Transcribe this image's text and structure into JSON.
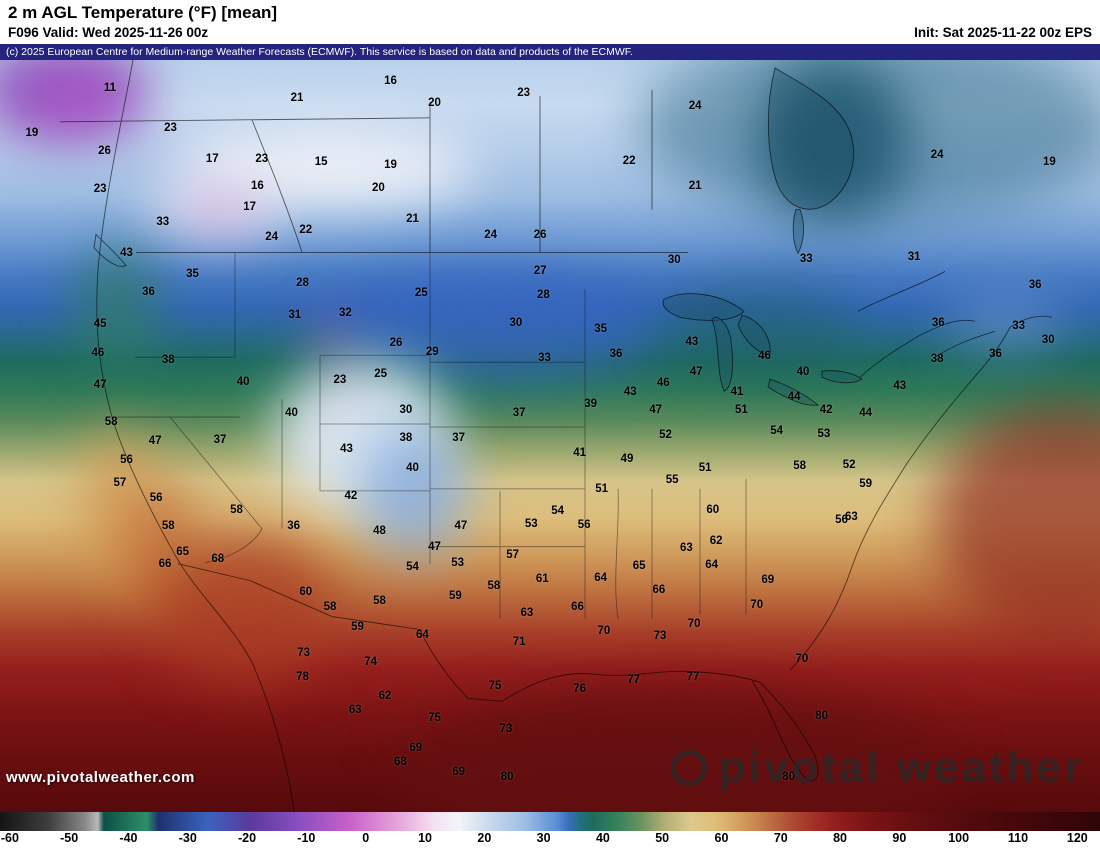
{
  "header": {
    "title": "2 m AGL Temperature (°F) [mean]",
    "valid": "F096 Valid: Wed 2025-11-26 00z",
    "init": "Init: Sat 2025-11-22 00z EPS"
  },
  "copyright": "(c) 2025 European Centre for Medium-range Weather Forecasts (ECMWF). This service is based on data and products of the ECMWF.",
  "watermark": {
    "site": "www.pivotalweather.com",
    "brand": "pivotal weather"
  },
  "colorbar": {
    "min": -60,
    "max": 120,
    "ticks": [
      -60,
      -50,
      -40,
      -30,
      -20,
      -10,
      0,
      10,
      20,
      30,
      40,
      50,
      60,
      70,
      80,
      90,
      100,
      110,
      120
    ],
    "stops": [
      {
        "v": -60,
        "c": "#141414"
      },
      {
        "v": -52,
        "c": "#3e3e3e"
      },
      {
        "v": -46,
        "c": "#8a8a8a"
      },
      {
        "v": -44,
        "c": "#b8b8b8"
      },
      {
        "v": -43,
        "c": "#0e4f46"
      },
      {
        "v": -36,
        "c": "#2c8f68"
      },
      {
        "v": -34,
        "c": "#20306f"
      },
      {
        "v": -26,
        "c": "#3a63c0"
      },
      {
        "v": -19,
        "c": "#5b3a9e"
      },
      {
        "v": -11,
        "c": "#8a4fc0"
      },
      {
        "v": -3,
        "c": "#c75fc9"
      },
      {
        "v": 4,
        "c": "#e39ad8"
      },
      {
        "v": 11,
        "c": "#f4e0f0"
      },
      {
        "v": 15,
        "c": "#f3f5f8"
      },
      {
        "v": 20,
        "c": "#cadaee"
      },
      {
        "v": 26,
        "c": "#9dbde4"
      },
      {
        "v": 31,
        "c": "#5b8fd4"
      },
      {
        "v": 33,
        "c": "#3b6fbf"
      },
      {
        "v": 35,
        "c": "#20707f"
      },
      {
        "v": 37,
        "c": "#1f6b5c"
      },
      {
        "v": 41,
        "c": "#35825c"
      },
      {
        "v": 45,
        "c": "#6a945f"
      },
      {
        "v": 49,
        "c": "#b5b077"
      },
      {
        "v": 53,
        "c": "#dcc98c"
      },
      {
        "v": 57,
        "c": "#e0bd79"
      },
      {
        "v": 61,
        "c": "#d3a05f"
      },
      {
        "v": 65,
        "c": "#c27948"
      },
      {
        "v": 69,
        "c": "#b05035"
      },
      {
        "v": 73,
        "c": "#a23127"
      },
      {
        "v": 77,
        "c": "#921d1c"
      },
      {
        "v": 82,
        "c": "#7c1415"
      },
      {
        "v": 90,
        "c": "#640e10"
      },
      {
        "v": 100,
        "c": "#500a0c"
      },
      {
        "v": 110,
        "c": "#40070a"
      },
      {
        "v": 120,
        "c": "#300507"
      }
    ]
  },
  "map_labels": [
    [
      "11",
      10.0,
      3.7
    ],
    [
      "21",
      27.0,
      5.0
    ],
    [
      "16",
      35.5,
      2.8
    ],
    [
      "20",
      39.5,
      5.7
    ],
    [
      "23",
      47.6,
      4.4
    ],
    [
      "24",
      63.2,
      6.1
    ],
    [
      "19",
      2.9,
      9.7
    ],
    [
      "23",
      15.5,
      9.1
    ],
    [
      "26",
      9.5,
      12.1
    ],
    [
      "17",
      19.3,
      13.2
    ],
    [
      "23",
      23.8,
      13.1
    ],
    [
      "15",
      29.2,
      13.6
    ],
    [
      "19",
      35.5,
      14.0
    ],
    [
      "22",
      57.2,
      13.4
    ],
    [
      "24",
      85.2,
      12.6
    ],
    [
      "19",
      95.4,
      13.6
    ],
    [
      "23",
      9.1,
      17.2
    ],
    [
      "16",
      23.4,
      16.7
    ],
    [
      "20",
      34.4,
      17.0
    ],
    [
      "21",
      63.2,
      16.8
    ],
    [
      "17",
      22.7,
      19.6
    ],
    [
      "33",
      14.8,
      21.5
    ],
    [
      "21",
      37.5,
      21.2
    ],
    [
      "22",
      27.8,
      22.6
    ],
    [
      "24",
      24.7,
      23.6
    ],
    [
      "24",
      44.6,
      23.3
    ],
    [
      "26",
      49.1,
      23.3
    ],
    [
      "43",
      11.5,
      25.6
    ],
    [
      "30",
      61.3,
      26.6
    ],
    [
      "33",
      73.3,
      26.5
    ],
    [
      "31",
      83.1,
      26.2
    ],
    [
      "35",
      17.5,
      28.5
    ],
    [
      "27",
      49.1,
      28.1
    ],
    [
      "36",
      13.5,
      30.9
    ],
    [
      "28",
      27.5,
      29.7
    ],
    [
      "25",
      38.3,
      31.0
    ],
    [
      "28",
      49.4,
      31.3
    ],
    [
      "36",
      94.1,
      29.9
    ],
    [
      "45",
      9.1,
      35.1
    ],
    [
      "31",
      26.8,
      33.9
    ],
    [
      "32",
      31.4,
      33.6
    ],
    [
      "30",
      46.9,
      35.0
    ],
    [
      "35",
      54.6,
      35.8
    ],
    [
      "43",
      62.9,
      37.5
    ],
    [
      "36",
      85.3,
      35.0
    ],
    [
      "33",
      92.6,
      35.4
    ],
    [
      "46",
      8.9,
      38.9
    ],
    [
      "38",
      15.3,
      39.9
    ],
    [
      "26",
      36.0,
      37.6
    ],
    [
      "29",
      39.3,
      38.8
    ],
    [
      "33",
      49.5,
      39.6
    ],
    [
      "36",
      56.0,
      39.1
    ],
    [
      "46",
      60.3,
      43.0
    ],
    [
      "47",
      63.3,
      41.5
    ],
    [
      "46",
      69.5,
      39.3
    ],
    [
      "40",
      73.0,
      41.5
    ],
    [
      "38",
      85.2,
      39.7
    ],
    [
      "36",
      90.5,
      39.1
    ],
    [
      "30",
      95.3,
      37.2
    ],
    [
      "47",
      9.1,
      43.2
    ],
    [
      "40",
      22.1,
      42.8
    ],
    [
      "23",
      30.9,
      42.6
    ],
    [
      "25",
      34.6,
      41.7
    ],
    [
      "43",
      57.3,
      44.1
    ],
    [
      "41",
      67.0,
      44.1
    ],
    [
      "44",
      72.2,
      44.8
    ],
    [
      "43",
      81.8,
      43.3
    ],
    [
      "44",
      78.7,
      47.0
    ],
    [
      "42",
      75.1,
      46.5
    ],
    [
      "58",
      10.1,
      48.2
    ],
    [
      "40",
      26.5,
      46.9
    ],
    [
      "30",
      36.9,
      46.5
    ],
    [
      "37",
      47.2,
      46.9
    ],
    [
      "39",
      53.7,
      45.7
    ],
    [
      "47",
      59.6,
      46.6
    ],
    [
      "51",
      67.4,
      46.6
    ],
    [
      "53",
      74.9,
      49.7
    ],
    [
      "54",
      70.6,
      49.4
    ],
    [
      "52",
      60.5,
      49.9
    ],
    [
      "47",
      14.1,
      50.6
    ],
    [
      "37",
      20.0,
      50.5
    ],
    [
      "43",
      31.5,
      51.7
    ],
    [
      "38",
      36.9,
      50.2
    ],
    [
      "37",
      41.7,
      50.2
    ],
    [
      "41",
      52.7,
      52.3
    ],
    [
      "49",
      57.0,
      53.1
    ],
    [
      "51",
      64.1,
      54.3
    ],
    [
      "58",
      72.7,
      54.0
    ],
    [
      "52",
      77.2,
      53.8
    ],
    [
      "59",
      78.7,
      56.4
    ],
    [
      "56",
      11.5,
      53.2
    ],
    [
      "57",
      10.9,
      56.2
    ],
    [
      "40",
      37.5,
      54.2
    ],
    [
      "56",
      14.2,
      58.3
    ],
    [
      "42",
      31.9,
      58.0
    ],
    [
      "51",
      54.7,
      57.1
    ],
    [
      "55",
      61.1,
      55.8
    ],
    [
      "58",
      15.3,
      62.0
    ],
    [
      "58",
      21.5,
      59.9
    ],
    [
      "36",
      26.7,
      62.0
    ],
    [
      "48",
      34.5,
      62.6
    ],
    [
      "47",
      41.9,
      62.0
    ],
    [
      "53",
      48.3,
      61.7
    ],
    [
      "54",
      50.7,
      60.0
    ],
    [
      "56",
      53.1,
      61.9
    ],
    [
      "60",
      64.8,
      59.9
    ],
    [
      "62",
      65.1,
      64.0
    ],
    [
      "56",
      76.5,
      61.2
    ],
    [
      "63",
      77.4,
      60.8
    ],
    [
      "63",
      62.4,
      64.9
    ],
    [
      "65",
      16.6,
      65.4
    ],
    [
      "68",
      19.8,
      66.4
    ],
    [
      "66",
      15.0,
      67.0
    ],
    [
      "47",
      39.5,
      64.8
    ],
    [
      "53",
      41.6,
      66.9
    ],
    [
      "57",
      46.6,
      65.8
    ],
    [
      "61",
      49.3,
      69.0
    ],
    [
      "60",
      27.8,
      70.7
    ],
    [
      "58",
      30.0,
      72.8
    ],
    [
      "58",
      34.5,
      71.9
    ],
    [
      "54",
      37.5,
      67.4
    ],
    [
      "59",
      41.4,
      71.3
    ],
    [
      "58",
      44.9,
      69.9
    ],
    [
      "64",
      54.6,
      68.9
    ],
    [
      "65",
      58.1,
      67.3
    ],
    [
      "66",
      59.9,
      70.5
    ],
    [
      "64",
      64.7,
      67.2
    ],
    [
      "69",
      69.8,
      69.1
    ],
    [
      "70",
      68.8,
      72.5
    ],
    [
      "63",
      47.9,
      73.6
    ],
    [
      "66",
      52.5,
      72.8
    ],
    [
      "59",
      32.5,
      75.4
    ],
    [
      "64",
      38.4,
      76.4
    ],
    [
      "70",
      63.1,
      75.0
    ],
    [
      "70",
      72.9,
      79.6
    ],
    [
      "73",
      27.6,
      78.9
    ],
    [
      "78",
      27.5,
      82.0
    ],
    [
      "74",
      33.7,
      80.0
    ],
    [
      "71",
      47.2,
      77.4
    ],
    [
      "70",
      54.9,
      75.9
    ],
    [
      "73",
      60.0,
      76.6
    ],
    [
      "76",
      52.7,
      83.7
    ],
    [
      "77",
      57.6,
      82.4
    ],
    [
      "77",
      63.0,
      82.0
    ],
    [
      "75",
      45.0,
      83.3
    ],
    [
      "62",
      35.0,
      84.6
    ],
    [
      "63",
      32.3,
      86.5
    ],
    [
      "75",
      39.5,
      87.5
    ],
    [
      "73",
      46.0,
      89.0
    ],
    [
      "80",
      74.7,
      87.3
    ],
    [
      "69",
      37.8,
      91.5
    ],
    [
      "68",
      36.4,
      93.4
    ],
    [
      "69",
      41.7,
      94.7
    ],
    [
      "80",
      46.1,
      95.4
    ],
    [
      "80",
      71.7,
      95.4
    ]
  ]
}
